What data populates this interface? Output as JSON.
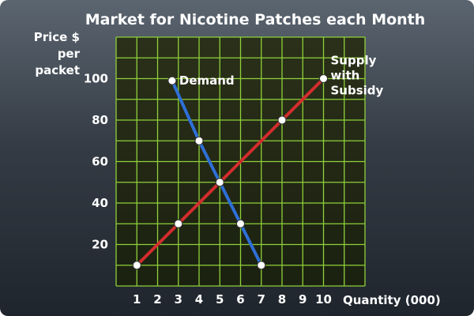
{
  "chart_data": {
    "type": "line",
    "title": "Market for Nicotine Patches each Month",
    "ylabel_lines": [
      "Price $",
      "per",
      "packet"
    ],
    "xlabel": "Quantity (000)",
    "xlim": [
      0,
      12
    ],
    "ylim": [
      0,
      120
    ],
    "xticks": [
      1,
      2,
      3,
      4,
      5,
      6,
      7,
      8,
      9,
      10
    ],
    "yticks": [
      20,
      40,
      60,
      80,
      100
    ],
    "grid": true,
    "series": [
      {
        "name": "Demand",
        "label_lines": [
          "Demand"
        ],
        "color": "#2f6fd6",
        "points": [
          [
            2.7,
            99
          ],
          [
            4,
            70
          ],
          [
            5,
            50
          ],
          [
            6,
            30
          ],
          [
            7,
            10
          ]
        ]
      },
      {
        "name": "Supply with Subsidy",
        "label_lines": [
          "Supply",
          "with",
          "Subsidy"
        ],
        "color": "#d22d2d",
        "points": [
          [
            1,
            10
          ],
          [
            3,
            30
          ],
          [
            5,
            50
          ],
          [
            8,
            80
          ],
          [
            10,
            100
          ]
        ]
      }
    ]
  },
  "colors": {
    "grid": "#8fd13a",
    "plot_bg_top": "#2a3019",
    "plot_bg_bottom": "#1b2110",
    "marker_fill": "#ffffff",
    "marker_stroke": "#333333"
  }
}
